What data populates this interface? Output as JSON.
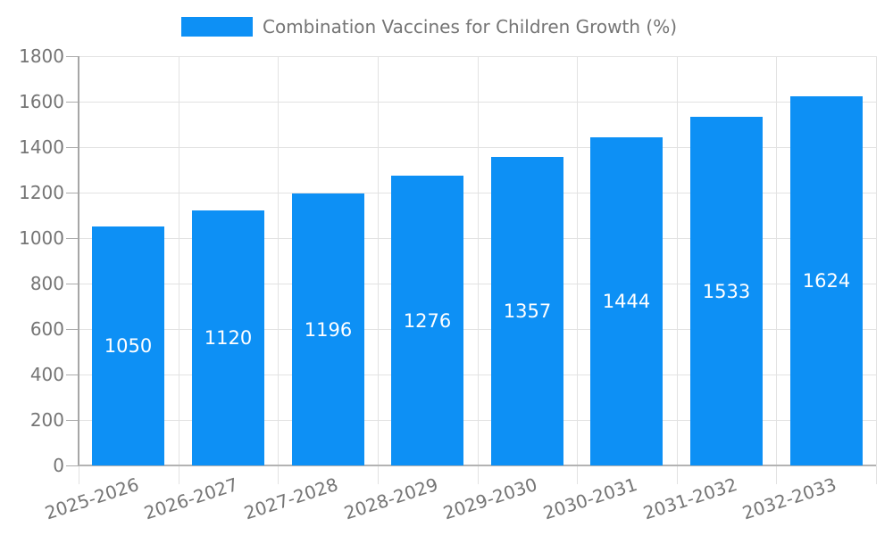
{
  "chart_data": {
    "type": "bar",
    "title": "",
    "xlabel": "",
    "ylabel": "",
    "legend_label": "Combination Vaccines for Children Growth (%)",
    "legend_position": "top-center",
    "categories": [
      "2025-2026",
      "2026-2027",
      "2027-2028",
      "2028-2029",
      "2029-2030",
      "2030-2031",
      "2031-2032",
      "2032-2033"
    ],
    "values": [
      1050,
      1120,
      1196,
      1276,
      1357,
      1444,
      1533,
      1624
    ],
    "ylim": [
      0,
      1800
    ],
    "yticks": [
      0,
      200,
      400,
      600,
      800,
      1000,
      1200,
      1400,
      1600,
      1800
    ],
    "grid": true,
    "value_labels_visible": true
  },
  "colors": {
    "bar": "#0d90f5",
    "value_label": "#ffffff",
    "grid": "#e2e2e2",
    "axis_line": "#b3b3b3",
    "tick_mark": "#ababab",
    "tick_label": "#757575",
    "legend_text": "#757575",
    "background": "#ffffff"
  }
}
